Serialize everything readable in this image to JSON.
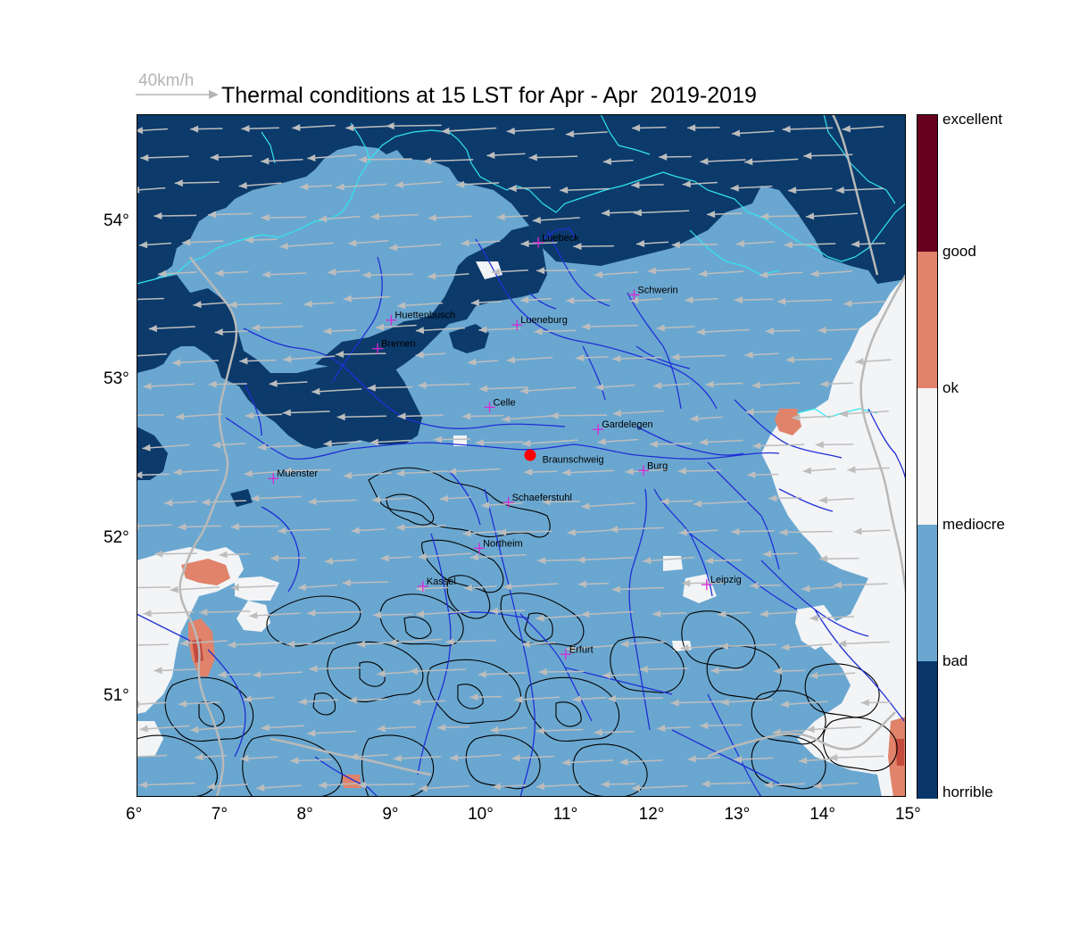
{
  "title": "Thermal conditions at 15 LST for Apr - Apr  2019-2019",
  "wind_reference": {
    "label": "40km/h"
  },
  "x_ticks": [
    "6°",
    "7°",
    "8°",
    "9°",
    "10°",
    "11°",
    "12°",
    "13°",
    "14°",
    "15°"
  ],
  "y_ticks": [
    "54°",
    "53°",
    "52°",
    "51°"
  ],
  "colorbar": {
    "labels": [
      "excellent",
      "good",
      "ok",
      "mediocre",
      "bad",
      "horrible"
    ],
    "colors": [
      "#67001f",
      "#e0836a",
      "#f5f5f5",
      "#6aa7d0",
      "#08366a"
    ]
  },
  "map_colors": {
    "horrible": "#0b3a6b",
    "bad": "#6aa7d0",
    "mediocre": "#f3f4f6",
    "ok": "#e0836a",
    "good": "#c44a3e",
    "water": "#1f2fd6",
    "coast": "#32e6ee",
    "border": "#b9b9b9",
    "wind": "#bdbdbd",
    "marker": "#d62ad6",
    "site": "#ff0000"
  },
  "cities": [
    {
      "name": "Luebeck",
      "lon": 10.7,
      "lat": 53.87
    },
    {
      "name": "Schwerin",
      "lon": 11.82,
      "lat": 53.54
    },
    {
      "name": "Huettenbusch",
      "lon": 8.98,
      "lat": 53.38
    },
    {
      "name": "Lueneburg",
      "lon": 10.45,
      "lat": 53.35
    },
    {
      "name": "Bremen",
      "lon": 8.82,
      "lat": 53.2
    },
    {
      "name": "Celle",
      "lon": 10.13,
      "lat": 52.83
    },
    {
      "name": "Gardelegen",
      "lon": 11.4,
      "lat": 52.69
    },
    {
      "name": "Braunschweig",
      "lon": 10.6,
      "lat": 52.48
    },
    {
      "name": "Burg",
      "lon": 11.93,
      "lat": 52.43
    },
    {
      "name": "Muenster",
      "lon": 7.6,
      "lat": 52.38
    },
    {
      "name": "Schaeferstuhl",
      "lon": 10.35,
      "lat": 52.23
    },
    {
      "name": "Northeim",
      "lon": 10.01,
      "lat": 51.94
    },
    {
      "name": "Kassel",
      "lon": 9.35,
      "lat": 51.7
    },
    {
      "name": "Leipzig",
      "lon": 12.67,
      "lat": 51.71
    },
    {
      "name": "Erfurt",
      "lon": 11.02,
      "lat": 51.27
    }
  ]
}
